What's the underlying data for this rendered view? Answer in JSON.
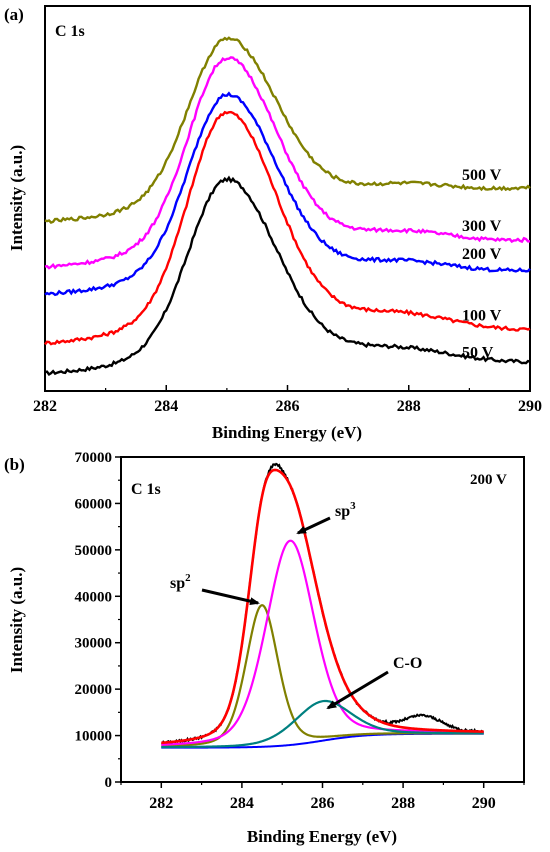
{
  "chart_data": [
    {
      "panel_label": "(a)",
      "type": "line",
      "title": "C 1s",
      "xlabel": "Binding Energy (eV)",
      "ylabel": "Intensity (a.u.)",
      "xlim": [
        282,
        290
      ],
      "xticks": [
        "282",
        "284",
        "286",
        "288",
        "290"
      ],
      "ylim": [
        0,
        10
      ],
      "y_axis_ticks_shown": false,
      "grid": false,
      "series": [
        {
          "name": "50 V",
          "color": "#000000",
          "baseline": 0.3,
          "height": 5.1,
          "tail": 0.5
        },
        {
          "name": "100 V",
          "color": "#ff0000",
          "baseline": 1.05,
          "height": 6.1,
          "tail": 0.8
        },
        {
          "name": "200 V",
          "color": "#0000ff",
          "baseline": 2.35,
          "height": 5.25,
          "tail": 1.8
        },
        {
          "name": "300 V",
          "color": "#ff00ff",
          "baseline": 3.05,
          "height": 5.5,
          "tail": 2.15
        },
        {
          "name": "500 V",
          "color": "#808000",
          "baseline": 4.25,
          "height": 4.8,
          "tail": 2.85
        }
      ],
      "peak_center": 285.0
    },
    {
      "panel_label": "(b)",
      "type": "line",
      "title": "C 1s",
      "annotation_top_right": "200 V",
      "xlabel": "Binding Energy (eV)",
      "ylabel": "Intensity (a.u.)",
      "xlim": [
        281,
        291
      ],
      "xticks": [
        282,
        284,
        286,
        288,
        290
      ],
      "ylim": [
        0,
        70000
      ],
      "yticks": [
        0,
        10000,
        20000,
        30000,
        40000,
        50000,
        60000,
        70000
      ],
      "grid": false,
      "components": [
        {
          "name": "sp2",
          "label": "sp",
          "label_sup": "2",
          "color": "#808000",
          "center": 284.5,
          "amplitude": 30500,
          "width": 0.4
        },
        {
          "name": "sp3",
          "label": "sp",
          "label_sup": "3",
          "color": "#ff00ff",
          "center": 285.2,
          "amplitude": 44000,
          "width": 0.6
        },
        {
          "name": "C-O",
          "label": "C-O",
          "color": "#008080",
          "center": 286.0,
          "amplitude": 8500,
          "width": 0.7
        }
      ],
      "background_color": "#0000ff",
      "envelope_color": "#ff0000",
      "raw_color": "#000000"
    }
  ]
}
